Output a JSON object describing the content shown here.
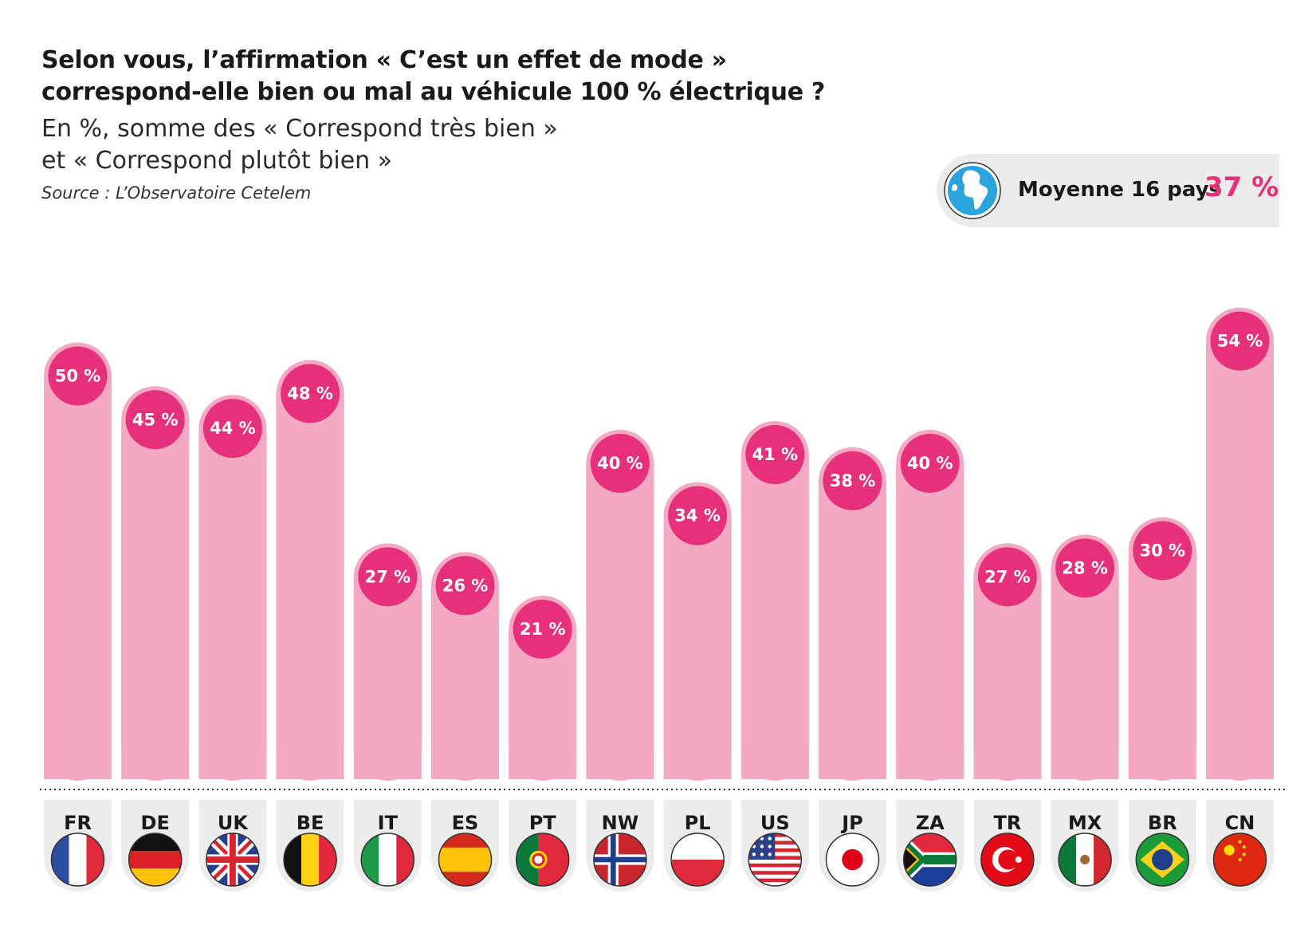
{
  "title_line1": "Selon vous, l’affirmation « C’est un effet de mode »",
  "title_line2": "correspond-elle bien ou mal au véhicule 100 % électrique ?",
  "subtitle_line1": "En %, somme des « Correspond très bien »",
  "subtitle_line2": "et « Correspond plutôt bien »",
  "source": "Source : L’Observatoire Cetelem",
  "average": {
    "label": "Moyenne 16 pays",
    "value": "37 %",
    "icon": "globe-icon"
  },
  "colors": {
    "bar": "#f4a8c3",
    "accent": "#e6317a",
    "label_bg": "#ececec"
  },
  "chart_data": {
    "type": "bar",
    "categories": [
      "FR",
      "DE",
      "UK",
      "BE",
      "IT",
      "ES",
      "PT",
      "NW",
      "PL",
      "US",
      "JP",
      "ZA",
      "TR",
      "MX",
      "BR",
      "CN"
    ],
    "values": [
      50,
      45,
      44,
      48,
      27,
      26,
      21,
      40,
      34,
      41,
      38,
      40,
      27,
      28,
      30,
      54
    ],
    "data_labels": [
      "50 %",
      "45 %",
      "44 %",
      "48 %",
      "27 %",
      "26 %",
      "21 %",
      "40 %",
      "34 %",
      "41 %",
      "38 %",
      "40 %",
      "27 %",
      "28 %",
      "30 %",
      "54 %"
    ],
    "flags": [
      "flag-fr-icon",
      "flag-de-icon",
      "flag-uk-icon",
      "flag-be-icon",
      "flag-it-icon",
      "flag-es-icon",
      "flag-pt-icon",
      "flag-no-icon",
      "flag-pl-icon",
      "flag-us-icon",
      "flag-jp-icon",
      "flag-za-icon",
      "flag-tr-icon",
      "flag-mx-icon",
      "flag-br-icon",
      "flag-cn-icon"
    ],
    "ylim": [
      0,
      60
    ],
    "grid": false
  }
}
